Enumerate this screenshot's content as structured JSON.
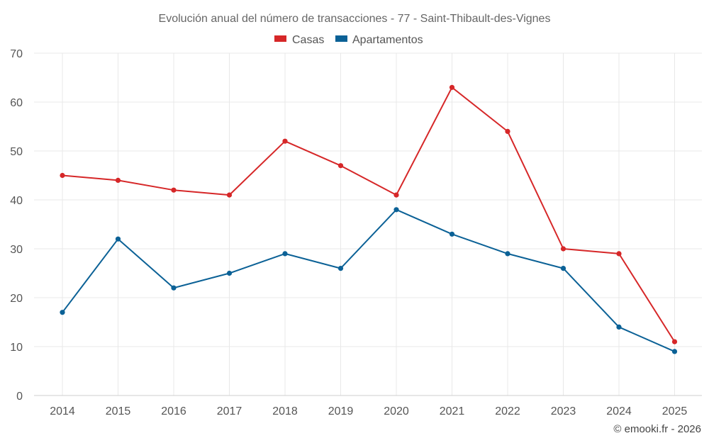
{
  "chart_data": {
    "type": "line",
    "title": "Evolución anual del número de transacciones - 77 - Saint-Thibault-des-Vignes",
    "categories": [
      "2014",
      "2015",
      "2016",
      "2017",
      "2018",
      "2019",
      "2020",
      "2021",
      "2022",
      "2023",
      "2024",
      "2025"
    ],
    "series": [
      {
        "name": "Casas",
        "color": "#d62728",
        "values": [
          45,
          44,
          42,
          41,
          52,
          47,
          41,
          63,
          54,
          30,
          29,
          11
        ]
      },
      {
        "name": "Apartamentos",
        "color": "#0b6196",
        "values": [
          17,
          32,
          22,
          25,
          29,
          26,
          38,
          33,
          29,
          26,
          14,
          9
        ]
      }
    ],
    "ylim": [
      0,
      70
    ],
    "yticks": [
      "0",
      "10",
      "20",
      "30",
      "40",
      "50",
      "60",
      "70"
    ],
    "grid": true,
    "legend": "top-center"
  },
  "credit": "© emooki.fr - 2026"
}
